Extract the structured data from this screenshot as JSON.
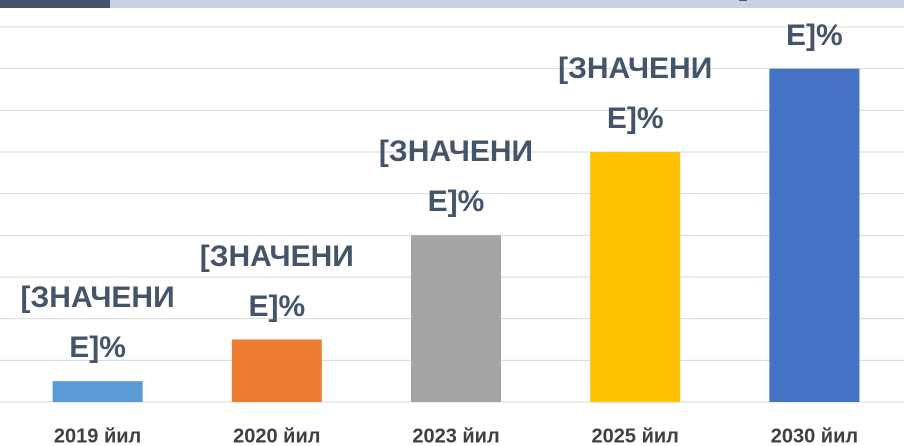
{
  "chart_data": {
    "type": "bar",
    "categories": [
      "2019 йил",
      "2020 йил",
      "2023 йил",
      "2025 йил",
      "2030 йил"
    ],
    "values": [
      5,
      15,
      40,
      60,
      80
    ],
    "value_labels": [
      "[ЗНАЧЕНИЕ]%",
      "[ЗНАЧЕНИЕ]%",
      "[ЗНАЧЕНИЕ]%",
      "[ЗНАЧЕНИЕ]%",
      "[ЗНАЧЕНИЕ]%"
    ],
    "colors": [
      "#5b9bd5",
      "#ed7d31",
      "#a5a5a5",
      "#ffc000",
      "#4472c4"
    ],
    "ylim": [
      0,
      90
    ],
    "yticks": [
      0,
      10,
      20,
      30,
      40,
      50,
      60,
      70,
      80,
      90
    ],
    "grid": true
  }
}
